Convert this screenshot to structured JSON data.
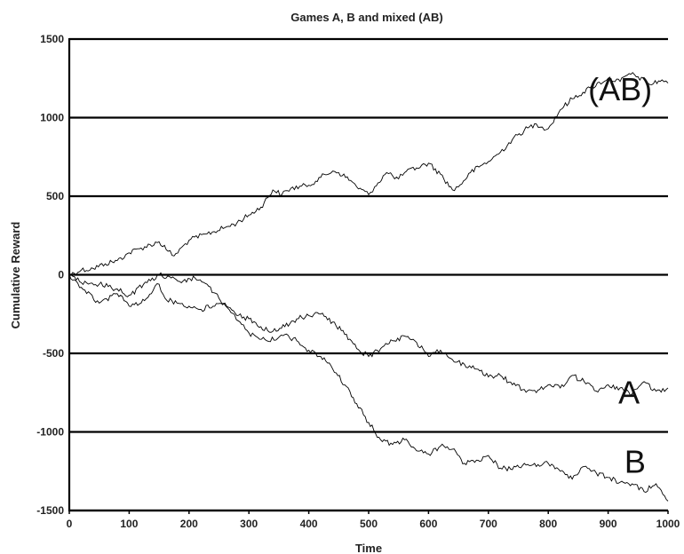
{
  "chart_data": {
    "type": "line",
    "title": "Games A, B and mixed (AB)",
    "xlabel": "Time",
    "ylabel": "Cumulative Reward",
    "xlim": [
      0,
      1000
    ],
    "ylim": [
      -1500,
      1500
    ],
    "xticks": [
      "0",
      "100",
      "200",
      "300",
      "400",
      "500",
      "600",
      "700",
      "800",
      "900",
      "1000"
    ],
    "yticks": [
      "1500",
      "1000",
      "500",
      "0",
      "-500",
      "-1000",
      "-1500"
    ],
    "grid": "horizontal",
    "series": [
      {
        "name": "(AB)",
        "label_at": [
          920,
          1110
        ],
        "x": [
          0,
          20,
          40,
          60,
          80,
          100,
          120,
          150,
          165,
          175,
          200,
          230,
          260,
          280,
          300,
          320,
          340,
          355,
          370,
          400,
          420,
          440,
          450,
          470,
          480,
          500,
          510,
          530,
          540,
          550,
          560,
          580,
          600,
          620,
          640,
          650,
          670,
          690,
          700,
          720,
          740,
          760,
          780,
          790,
          800,
          820,
          840,
          870,
          900,
          920,
          935,
          950,
          970,
          990,
          1000
        ],
        "values": [
          0,
          30,
          40,
          70,
          90,
          140,
          170,
          210,
          150,
          120,
          220,
          260,
          300,
          330,
          380,
          430,
          540,
          510,
          550,
          570,
          620,
          660,
          650,
          600,
          560,
          510,
          560,
          650,
          630,
          610,
          650,
          680,
          710,
          640,
          540,
          560,
          650,
          700,
          720,
          780,
          860,
          920,
          960,
          940,
          930,
          1050,
          1120,
          1190,
          1250,
          1230,
          1280,
          1260,
          1210,
          1240,
          1220
        ]
      },
      {
        "name": "A",
        "label_at": [
          935,
          -820
        ],
        "x": [
          0,
          20,
          50,
          80,
          100,
          120,
          140,
          150,
          160,
          180,
          200,
          220,
          240,
          260,
          280,
          300,
          320,
          340,
          360,
          380,
          400,
          420,
          440,
          460,
          480,
          500,
          520,
          540,
          560,
          580,
          600,
          620,
          640,
          660,
          680,
          700,
          720,
          740,
          760,
          780,
          800,
          820,
          840,
          860,
          880,
          900,
          920,
          940,
          960,
          980,
          1000
        ],
        "values": [
          0,
          -80,
          -180,
          -120,
          -200,
          -180,
          -100,
          -60,
          -150,
          -180,
          -200,
          -220,
          -200,
          -180,
          -260,
          -280,
          -330,
          -360,
          -330,
          -280,
          -260,
          -250,
          -300,
          -380,
          -470,
          -520,
          -470,
          -420,
          -390,
          -430,
          -520,
          -480,
          -540,
          -570,
          -600,
          -650,
          -640,
          -700,
          -730,
          -750,
          -700,
          -720,
          -640,
          -680,
          -740,
          -700,
          -720,
          -760,
          -680,
          -740,
          -720
        ]
      },
      {
        "name": "B",
        "label_at": [
          945,
          -1260
        ],
        "x": [
          0,
          20,
          50,
          80,
          100,
          130,
          150,
          170,
          190,
          210,
          230,
          250,
          270,
          300,
          330,
          360,
          380,
          400,
          420,
          440,
          460,
          480,
          500,
          520,
          540,
          560,
          580,
          600,
          620,
          640,
          660,
          680,
          700,
          720,
          740,
          760,
          780,
          800,
          820,
          840,
          860,
          880,
          900,
          920,
          940,
          960,
          980,
          1000
        ],
        "values": [
          0,
          -50,
          -60,
          -90,
          -130,
          -50,
          0,
          -20,
          -40,
          -20,
          -60,
          -150,
          -240,
          -370,
          -420,
          -380,
          -420,
          -480,
          -520,
          -600,
          -700,
          -820,
          -940,
          -1050,
          -1080,
          -1050,
          -1120,
          -1140,
          -1090,
          -1110,
          -1200,
          -1180,
          -1150,
          -1230,
          -1240,
          -1200,
          -1220,
          -1200,
          -1250,
          -1300,
          -1220,
          -1260,
          -1290,
          -1320,
          -1330,
          -1380,
          -1330,
          -1440
        ]
      }
    ]
  }
}
